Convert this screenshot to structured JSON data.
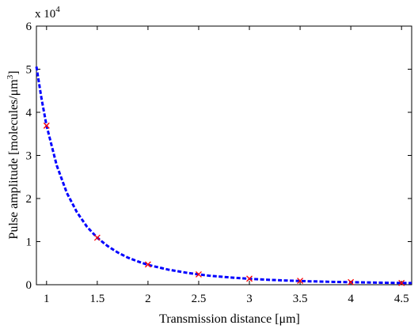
{
  "chart_data": {
    "type": "line",
    "xlabel": "Transmission distance [μm]",
    "ylabel": "Pulse amplitude [molecules/μm",
    "ylabel_sup": "3",
    "ylabel_close": "]",
    "y_exponent": {
      "base": "x 10",
      "power": "4"
    },
    "xlim": [
      0.9,
      4.6
    ],
    "ylim": [
      0,
      6
    ],
    "x_ticks": [
      1,
      1.5,
      2,
      2.5,
      3,
      3.5,
      4,
      4.5
    ],
    "x_tick_labels": [
      "1",
      "1.5",
      "2",
      "2.5",
      "3",
      "3.5",
      "4",
      "4.5"
    ],
    "y_ticks": [
      0,
      1,
      2,
      3,
      4,
      5,
      6
    ],
    "y_tick_labels": [
      "0",
      "1",
      "2",
      "3",
      "4",
      "5",
      "6"
    ],
    "grid": false,
    "series": [
      {
        "style": "dashed",
        "color": "#0000ff",
        "curve": "analytic",
        "x": [
          0.9,
          0.95,
          1.0,
          1.1,
          1.2,
          1.3,
          1.4,
          1.5,
          1.6,
          1.7,
          1.8,
          1.9,
          2.0,
          2.2,
          2.4,
          2.6,
          2.8,
          3.0,
          3.2,
          3.4,
          3.6,
          3.8,
          4.0,
          4.2,
          4.4,
          4.6
        ],
        "y": [
          5.06,
          4.32,
          3.69,
          2.77,
          2.13,
          1.68,
          1.34,
          1.09,
          0.9,
          0.75,
          0.63,
          0.54,
          0.46,
          0.35,
          0.27,
          0.21,
          0.17,
          0.137,
          0.113,
          0.094,
          0.079,
          0.067,
          0.058,
          0.05,
          0.043,
          0.038
        ]
      },
      {
        "style": "markers",
        "marker": "x",
        "color": "#ff0000",
        "curve": "simulation",
        "x": [
          1,
          1.5,
          2,
          2.5,
          3,
          3.5,
          4,
          4.5
        ],
        "y": [
          3.69,
          1.09,
          0.47,
          0.24,
          0.14,
          0.09,
          0.06,
          0.04
        ]
      }
    ]
  }
}
